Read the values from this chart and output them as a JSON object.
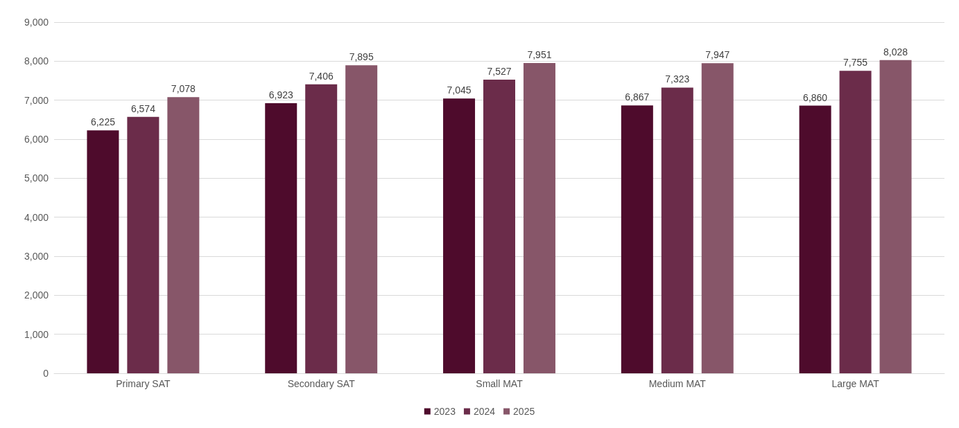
{
  "chart_data": {
    "type": "bar",
    "categories": [
      "Primary SAT",
      "Secondary SAT",
      "Small MAT",
      "Medium MAT",
      "Large MAT"
    ],
    "series": [
      {
        "name": "2023",
        "color": "#4e0b2c",
        "values": [
          6225,
          6923,
          7045,
          6867,
          6860
        ],
        "value_labels": [
          "6,225",
          "6,923",
          "7,045",
          "6,867",
          "6,860"
        ]
      },
      {
        "name": "2024",
        "color": "#6b2c4a",
        "values": [
          6574,
          7406,
          7527,
          7323,
          7755
        ],
        "value_labels": [
          "6,574",
          "7,406",
          "7,527",
          "7,323",
          "7,755"
        ]
      },
      {
        "name": "2025",
        "color": "#875669",
        "values": [
          7078,
          7895,
          7951,
          7947,
          8028
        ],
        "value_labels": [
          "7,078",
          "7,895",
          "7,951",
          "7,947",
          "8,028"
        ]
      }
    ],
    "ylim": [
      0,
      9000
    ],
    "yticks": [
      0,
      {
        "value": 1000,
        "label": "1,000"
      },
      {
        "value": 2000,
        "label": "2,000"
      },
      {
        "value": 3000,
        "label": "3,000"
      },
      {
        "value": 4000,
        "label": "4,000"
      },
      {
        "value": 5000,
        "label": "5,000"
      },
      {
        "value": 6000,
        "label": "6,000"
      },
      {
        "value": 7000,
        "label": "7,000"
      },
      {
        "value": 8000,
        "label": "8,000"
      },
      {
        "value": 9000,
        "label": "9,000"
      }
    ],
    "grid": "y",
    "legend": "bottom"
  }
}
